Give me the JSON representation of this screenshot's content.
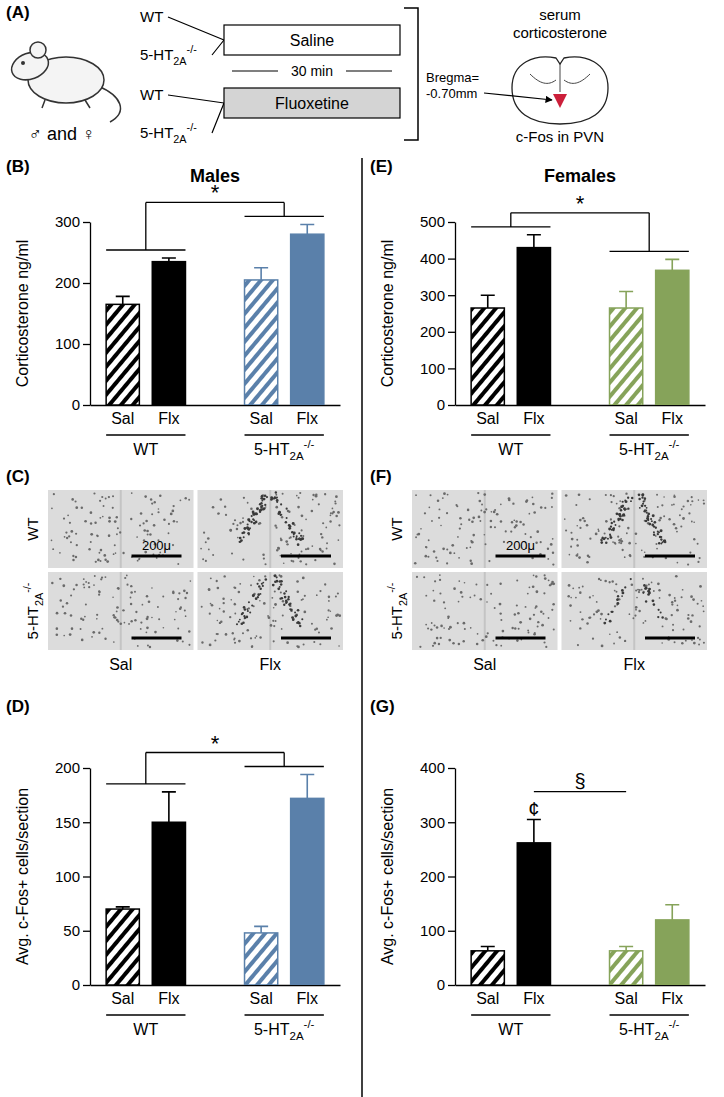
{
  "schematic": {
    "panel": "(A)",
    "sexes": "♂ and ♀",
    "genotypes": [
      [
        "WT"
      ],
      [
        "5-HT",
        "2A",
        "-/-"
      ]
    ],
    "treatments": [
      "Saline",
      "Fluoxetine"
    ],
    "interval": "30 min",
    "outcomes": [
      "serum",
      "corticosterone"
    ],
    "bregma": [
      "Bregma=",
      "-0.70mm"
    ],
    "region": "c-Fos in PVN"
  },
  "micrographs": [
    {
      "panel": "(C)",
      "rows": [
        [
          "WT"
        ],
        [
          "5-HT",
          "2A",
          "-/-"
        ]
      ],
      "columns": [
        "Sal",
        "Flx"
      ],
      "scale_bar": "200μ"
    },
    {
      "panel": "(F)",
      "rows": [
        [
          "WT"
        ],
        [
          "5-HT",
          "2A",
          "-/-"
        ]
      ],
      "columns": [
        "Sal",
        "Flx"
      ],
      "scale_bar": "200μ"
    }
  ],
  "chart_data": [
    {
      "type": "bar",
      "panel": "(B)",
      "title": "Males",
      "y_label": "Corticosterone ng/ml",
      "categories": [
        "Sal",
        "Flx",
        "Sal",
        "Flx"
      ],
      "groups": [
        {
          "label": [
            "WT"
          ],
          "members": [
            0,
            1
          ]
        },
        {
          "label": [
            "5-HT",
            "2A",
            "-/-"
          ],
          "members": [
            2,
            3
          ]
        }
      ],
      "values": [
        165,
        235,
        205,
        280
      ],
      "errors": [
        13,
        6,
        20,
        16
      ],
      "colors": [
        "#000000",
        "#000000",
        "#5a80aa",
        "#5a80aa"
      ],
      "ylim": [
        0,
        300
      ],
      "yticks": [
        0,
        100,
        200,
        300
      ],
      "annotations": [
        {
          "text": "*",
          "between": [
            0,
            1
          ]
        }
      ]
    },
    {
      "type": "bar",
      "panel": "(D)",
      "y_label": "Avg. c-Fos+ cells/section",
      "categories": [
        "Sal",
        "Flx",
        "Sal",
        "Flx"
      ],
      "groups": [
        {
          "label": [
            "WT"
          ],
          "members": [
            0,
            1
          ]
        },
        {
          "label": [
            "5-HT",
            "2A",
            "-/-"
          ],
          "members": [
            2,
            3
          ]
        }
      ],
      "values": [
        70,
        150,
        48,
        172
      ],
      "errors": [
        2,
        28,
        6,
        22
      ],
      "colors": [
        "#000000",
        "#000000",
        "#5a80aa",
        "#5a80aa"
      ],
      "ylim": [
        0,
        200
      ],
      "yticks": [
        0,
        50,
        100,
        150,
        200
      ],
      "annotations": [
        {
          "text": "*",
          "between": [
            0,
            1
          ]
        }
      ]
    },
    {
      "type": "bar",
      "panel": "(E)",
      "title": "Females",
      "y_label": "Corticosterone ng/ml",
      "categories": [
        "Sal",
        "Flx",
        "Sal",
        "Flx"
      ],
      "groups": [
        {
          "label": [
            "WT"
          ],
          "members": [
            0,
            1
          ]
        },
        {
          "label": [
            "5-HT",
            "2A",
            "-/-"
          ],
          "members": [
            2,
            3
          ]
        }
      ],
      "values": [
        265,
        430,
        265,
        368
      ],
      "errors": [
        35,
        35,
        45,
        30
      ],
      "colors": [
        "#000000",
        "#000000",
        "#86a35a",
        "#86a35a"
      ],
      "ylim": [
        0,
        500
      ],
      "yticks": [
        0,
        100,
        200,
        300,
        400,
        500
      ],
      "annotations": [
        {
          "text": "*",
          "between": [
            0,
            1
          ]
        }
      ]
    },
    {
      "type": "bar",
      "panel": "(G)",
      "y_label": "Avg. c-Fos+ cells/section",
      "categories": [
        "Sal",
        "Flx",
        "Sal",
        "Flx"
      ],
      "groups": [
        {
          "label": [
            "WT"
          ],
          "members": [
            0,
            1
          ]
        },
        {
          "label": [
            "5-HT",
            "2A",
            "-/-"
          ],
          "members": [
            2,
            3
          ]
        }
      ],
      "values": [
        63,
        262,
        63,
        120
      ],
      "errors": [
        8,
        43,
        8,
        28
      ],
      "colors": [
        "#000000",
        "#000000",
        "#86a35a",
        "#86a35a"
      ],
      "ylim": [
        0,
        400
      ],
      "yticks": [
        0,
        100,
        200,
        300,
        400
      ],
      "annotations": [
        {
          "text": "¢",
          "at": 1
        },
        {
          "text": "§",
          "span": [
            1,
            2
          ]
        }
      ]
    }
  ]
}
